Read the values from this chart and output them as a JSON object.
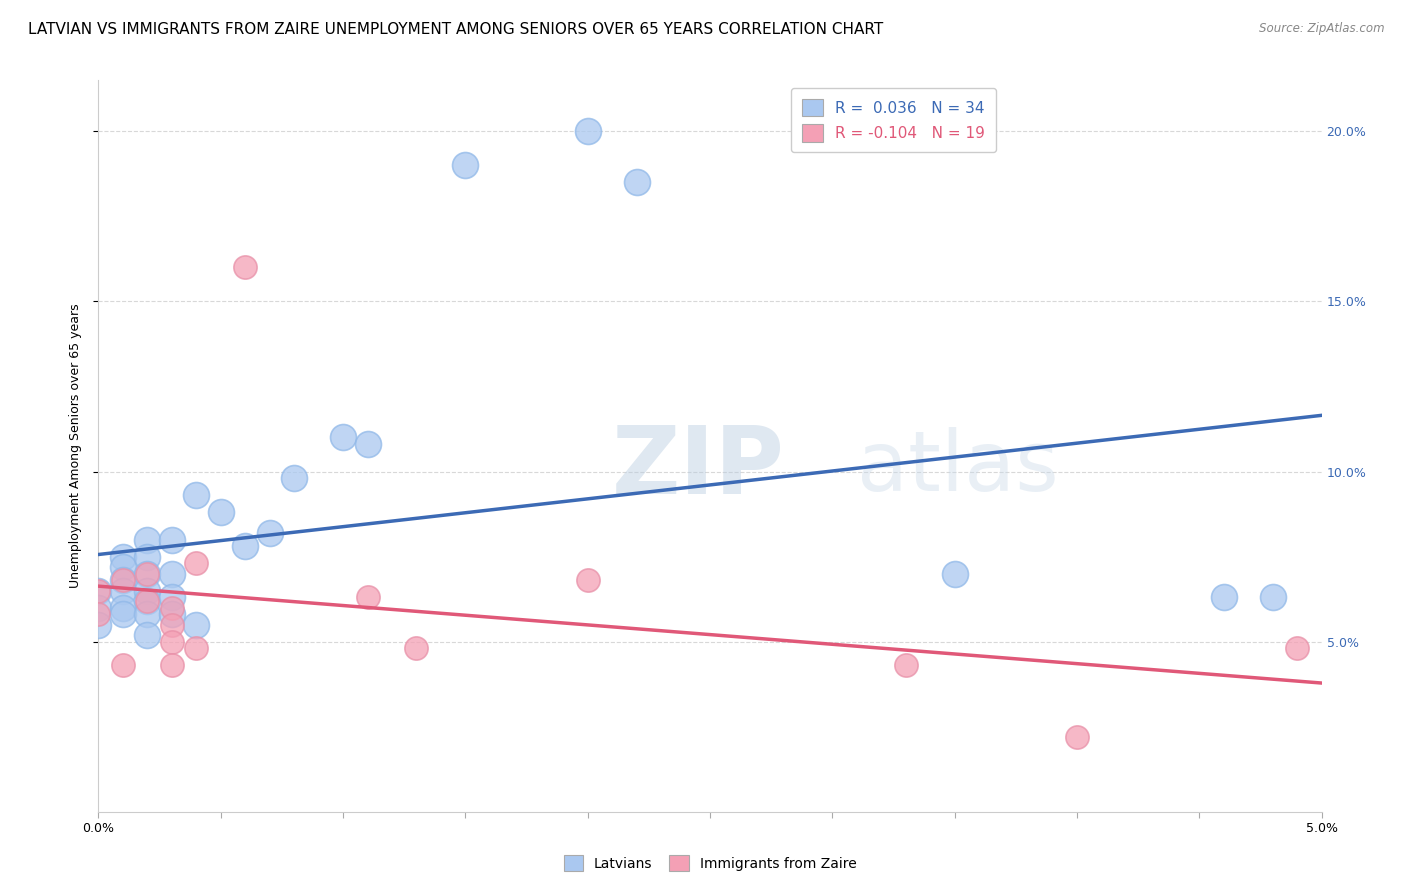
{
  "title": "LATVIAN VS IMMIGRANTS FROM ZAIRE UNEMPLOYMENT AMONG SENIORS OVER 65 YEARS CORRELATION CHART",
  "source": "Source: ZipAtlas.com",
  "ylabel": "Unemployment Among Seniors over 65 years",
  "ylabel_right_ticks": [
    "5.0%",
    "10.0%",
    "15.0%",
    "20.0%"
  ],
  "ylabel_right_vals": [
    0.05,
    0.1,
    0.15,
    0.2
  ],
  "xlim": [
    0.0,
    0.05
  ],
  "ylim": [
    0.0,
    0.215
  ],
  "R_latvian": 0.036,
  "N_latvian": 34,
  "R_zaire": -0.104,
  "N_zaire": 19,
  "color_latvian": "#aac8f0",
  "color_zaire": "#f4a0b5",
  "line_color_latvian": "#3c6ab5",
  "line_color_zaire": "#e05878",
  "latvian_x": [
    0.0,
    0.0,
    0.0,
    0.001,
    0.001,
    0.001,
    0.001,
    0.001,
    0.001,
    0.002,
    0.002,
    0.002,
    0.002,
    0.002,
    0.002,
    0.002,
    0.003,
    0.003,
    0.003,
    0.003,
    0.004,
    0.004,
    0.005,
    0.006,
    0.007,
    0.008,
    0.01,
    0.011,
    0.015,
    0.02,
    0.022,
    0.035,
    0.046,
    0.048
  ],
  "latvian_y": [
    0.065,
    0.06,
    0.055,
    0.075,
    0.072,
    0.068,
    0.065,
    0.06,
    0.058,
    0.08,
    0.075,
    0.07,
    0.065,
    0.062,
    0.058,
    0.052,
    0.08,
    0.07,
    0.063,
    0.058,
    0.093,
    0.055,
    0.088,
    0.078,
    0.082,
    0.098,
    0.11,
    0.108,
    0.19,
    0.2,
    0.185,
    0.07,
    0.063,
    0.063
  ],
  "zaire_x": [
    0.0,
    0.0,
    0.001,
    0.001,
    0.002,
    0.002,
    0.003,
    0.003,
    0.003,
    0.003,
    0.004,
    0.004,
    0.006,
    0.011,
    0.013,
    0.02,
    0.033,
    0.04,
    0.049
  ],
  "zaire_y": [
    0.065,
    0.058,
    0.068,
    0.043,
    0.07,
    0.062,
    0.06,
    0.055,
    0.05,
    0.043,
    0.073,
    0.048,
    0.16,
    0.063,
    0.048,
    0.068,
    0.043,
    0.022,
    0.048
  ],
  "watermark_zip": "ZIP",
  "watermark_atlas": "atlas",
  "background_color": "#ffffff",
  "grid_color": "#d8d8d8",
  "title_fontsize": 11,
  "axis_label_fontsize": 9,
  "tick_fontsize": 9
}
